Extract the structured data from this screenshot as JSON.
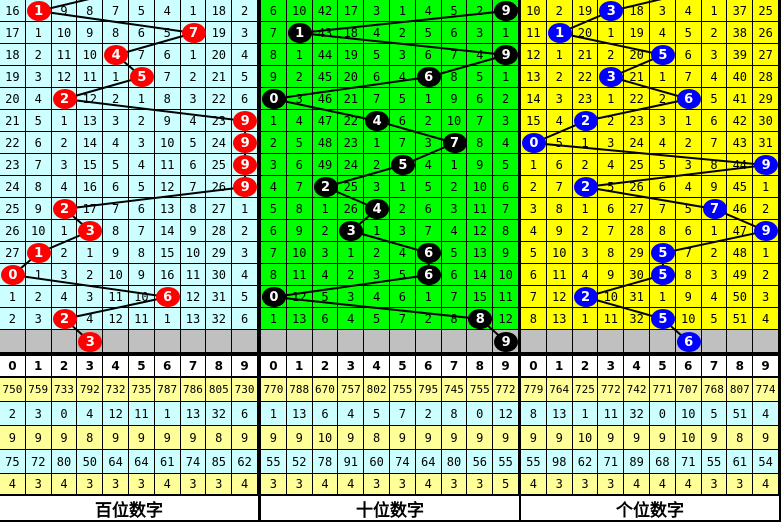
{
  "colors": {
    "yellow_row": "#ffff99",
    "cyan_row": "#ccffff",
    "gray_row": "#c0c0c0"
  },
  "header_digits": [
    "0",
    "1",
    "2",
    "3",
    "4",
    "5",
    "6",
    "7",
    "8",
    "9"
  ],
  "panels": [
    {
      "key": "hundreds",
      "title": "百位数字",
      "bg": "#ccffff",
      "ball_color": "#ff0000",
      "rows": [
        {
          "cells": [
            "16",
            "1",
            "9",
            "8",
            "7",
            "5",
            "4",
            "1",
            "18",
            "2"
          ],
          "hit": 1
        },
        {
          "cells": [
            "17",
            "1",
            "10",
            "9",
            "8",
            "6",
            "5",
            "7",
            "19",
            "3"
          ],
          "hit": 7
        },
        {
          "cells": [
            "18",
            "2",
            "11",
            "10",
            "4",
            "7",
            "6",
            "1",
            "20",
            "4"
          ],
          "hit": 4
        },
        {
          "cells": [
            "19",
            "3",
            "12",
            "11",
            "1",
            "5",
            "7",
            "2",
            "21",
            "5"
          ],
          "hit": 5
        },
        {
          "cells": [
            "20",
            "4",
            "2",
            "12",
            "2",
            "1",
            "8",
            "3",
            "22",
            "6"
          ],
          "hit": 2
        },
        {
          "cells": [
            "21",
            "5",
            "1",
            "13",
            "3",
            "2",
            "9",
            "4",
            "23",
            "9"
          ],
          "hit": 9
        },
        {
          "cells": [
            "22",
            "6",
            "2",
            "14",
            "4",
            "3",
            "10",
            "5",
            "24",
            "9"
          ],
          "hit": 9
        },
        {
          "cells": [
            "23",
            "7",
            "3",
            "15",
            "5",
            "4",
            "11",
            "6",
            "25",
            "9"
          ],
          "hit": 9
        },
        {
          "cells": [
            "24",
            "8",
            "4",
            "16",
            "6",
            "5",
            "12",
            "7",
            "26",
            "9"
          ],
          "hit": 9
        },
        {
          "cells": [
            "25",
            "9",
            "2",
            "17",
            "7",
            "6",
            "13",
            "8",
            "27",
            "1"
          ],
          "hit": 2
        },
        {
          "cells": [
            "26",
            "10",
            "1",
            "3",
            "8",
            "7",
            "14",
            "9",
            "28",
            "2"
          ],
          "hit": 3
        },
        {
          "cells": [
            "27",
            "1",
            "2",
            "1",
            "9",
            "8",
            "15",
            "10",
            "29",
            "3"
          ],
          "hit": 1
        },
        {
          "cells": [
            "0",
            "1",
            "3",
            "2",
            "10",
            "9",
            "16",
            "11",
            "30",
            "4"
          ],
          "hit": 0
        },
        {
          "cells": [
            "1",
            "2",
            "4",
            "3",
            "11",
            "10",
            "6",
            "12",
            "31",
            "5"
          ],
          "hit": 6
        },
        {
          "cells": [
            "2",
            "3",
            "2",
            "4",
            "12",
            "11",
            "1",
            "13",
            "32",
            "6"
          ],
          "hit": 2
        }
      ],
      "pending": {
        "hit": 3,
        "value": "3"
      },
      "stats": [
        [
          "750",
          "759",
          "733",
          "792",
          "732",
          "735",
          "787",
          "786",
          "805",
          "730"
        ],
        [
          "2",
          "3",
          "0",
          "4",
          "12",
          "11",
          "1",
          "13",
          "32",
          "6"
        ],
        [
          "9",
          "9",
          "9",
          "8",
          "9",
          "9",
          "9",
          "9",
          "8",
          "9"
        ],
        [
          "75",
          "72",
          "80",
          "50",
          "64",
          "64",
          "61",
          "74",
          "85",
          "62"
        ],
        [
          "4",
          "3",
          "4",
          "3",
          "3",
          "3",
          "4",
          "3",
          "3",
          "4"
        ]
      ]
    },
    {
      "key": "tens",
      "title": "十位数字",
      "bg": "#00ff00",
      "ball_color": "#000000",
      "rows": [
        {
          "cells": [
            "6",
            "10",
            "42",
            "17",
            "3",
            "1",
            "4",
            "5",
            "2",
            "9"
          ],
          "hit": 9
        },
        {
          "cells": [
            "7",
            "1",
            "43",
            "18",
            "4",
            "2",
            "5",
            "6",
            "3",
            "1"
          ],
          "hit": 1
        },
        {
          "cells": [
            "8",
            "1",
            "44",
            "19",
            "5",
            "3",
            "6",
            "7",
            "4",
            "9"
          ],
          "hit": 9
        },
        {
          "cells": [
            "9",
            "2",
            "45",
            "20",
            "6",
            "4",
            "6",
            "8",
            "5",
            "1"
          ],
          "hit": 6
        },
        {
          "cells": [
            "0",
            "3",
            "46",
            "21",
            "7",
            "5",
            "1",
            "9",
            "6",
            "2"
          ],
          "hit": 0
        },
        {
          "cells": [
            "1",
            "4",
            "47",
            "22",
            "4",
            "6",
            "2",
            "10",
            "7",
            "3"
          ],
          "hit": 4
        },
        {
          "cells": [
            "2",
            "5",
            "48",
            "23",
            "1",
            "7",
            "3",
            "7",
            "8",
            "4"
          ],
          "hit": 7
        },
        {
          "cells": [
            "3",
            "6",
            "49",
            "24",
            "2",
            "5",
            "4",
            "1",
            "9",
            "5"
          ],
          "hit": 5
        },
        {
          "cells": [
            "4",
            "7",
            "2",
            "25",
            "3",
            "1",
            "5",
            "2",
            "10",
            "6"
          ],
          "hit": 2
        },
        {
          "cells": [
            "5",
            "8",
            "1",
            "26",
            "4",
            "2",
            "6",
            "3",
            "11",
            "7"
          ],
          "hit": 4
        },
        {
          "cells": [
            "6",
            "9",
            "2",
            "3",
            "1",
            "3",
            "7",
            "4",
            "12",
            "8"
          ],
          "hit": 3
        },
        {
          "cells": [
            "7",
            "10",
            "3",
            "1",
            "2",
            "4",
            "6",
            "5",
            "13",
            "9"
          ],
          "hit": 6
        },
        {
          "cells": [
            "8",
            "11",
            "4",
            "2",
            "3",
            "5",
            "6",
            "6",
            "14",
            "10"
          ],
          "hit": 6
        },
        {
          "cells": [
            "0",
            "12",
            "5",
            "3",
            "4",
            "6",
            "1",
            "7",
            "15",
            "11"
          ],
          "hit": 0
        },
        {
          "cells": [
            "1",
            "13",
            "6",
            "4",
            "5",
            "7",
            "2",
            "8",
            "8",
            "12"
          ],
          "hit": 8
        }
      ],
      "pending": {
        "hit": 9,
        "value": "9"
      },
      "stats": [
        [
          "770",
          "788",
          "670",
          "757",
          "802",
          "755",
          "795",
          "745",
          "755",
          "772"
        ],
        [
          "1",
          "13",
          "6",
          "4",
          "5",
          "7",
          "2",
          "8",
          "0",
          "12"
        ],
        [
          "9",
          "9",
          "10",
          "9",
          "8",
          "9",
          "9",
          "9",
          "9",
          "9"
        ],
        [
          "55",
          "52",
          "78",
          "91",
          "60",
          "74",
          "64",
          "80",
          "56",
          "55"
        ],
        [
          "3",
          "3",
          "4",
          "4",
          "3",
          "3",
          "4",
          "3",
          "3",
          "5"
        ]
      ]
    },
    {
      "key": "units",
      "title": "个位数字",
      "bg": "#ffff00",
      "ball_color": "#0000ff",
      "rows": [
        {
          "cells": [
            "10",
            "2",
            "19",
            "3",
            "18",
            "3",
            "4",
            "1",
            "37",
            "25"
          ],
          "hit": 3
        },
        {
          "cells": [
            "11",
            "1",
            "20",
            "1",
            "19",
            "4",
            "5",
            "2",
            "38",
            "26"
          ],
          "hit": 1
        },
        {
          "cells": [
            "12",
            "1",
            "21",
            "2",
            "20",
            "5",
            "6",
            "3",
            "39",
            "27"
          ],
          "hit": 5
        },
        {
          "cells": [
            "13",
            "2",
            "22",
            "3",
            "21",
            "1",
            "7",
            "4",
            "40",
            "28"
          ],
          "hit": 3
        },
        {
          "cells": [
            "14",
            "3",
            "23",
            "1",
            "22",
            "2",
            "6",
            "5",
            "41",
            "29"
          ],
          "hit": 6
        },
        {
          "cells": [
            "15",
            "4",
            "2",
            "2",
            "23",
            "3",
            "1",
            "6",
            "42",
            "30"
          ],
          "hit": 2
        },
        {
          "cells": [
            "0",
            "5",
            "1",
            "3",
            "24",
            "4",
            "2",
            "7",
            "43",
            "31"
          ],
          "hit": 0
        },
        {
          "cells": [
            "1",
            "6",
            "2",
            "4",
            "25",
            "5",
            "3",
            "8",
            "44",
            "9"
          ],
          "hit": 9
        },
        {
          "cells": [
            "2",
            "7",
            "2",
            "5",
            "26",
            "6",
            "4",
            "9",
            "45",
            "1"
          ],
          "hit": 2
        },
        {
          "cells": [
            "3",
            "8",
            "1",
            "6",
            "27",
            "7",
            "5",
            "7",
            "46",
            "2"
          ],
          "hit": 7
        },
        {
          "cells": [
            "4",
            "9",
            "2",
            "7",
            "28",
            "8",
            "6",
            "1",
            "47",
            "9"
          ],
          "hit": 9
        },
        {
          "cells": [
            "5",
            "10",
            "3",
            "8",
            "29",
            "5",
            "7",
            "2",
            "48",
            "1"
          ],
          "hit": 5
        },
        {
          "cells": [
            "6",
            "11",
            "4",
            "9",
            "30",
            "5",
            "8",
            "3",
            "49",
            "2"
          ],
          "hit": 5
        },
        {
          "cells": [
            "7",
            "12",
            "2",
            "10",
            "31",
            "1",
            "9",
            "4",
            "50",
            "3"
          ],
          "hit": 2
        },
        {
          "cells": [
            "8",
            "13",
            "1",
            "11",
            "32",
            "5",
            "10",
            "5",
            "51",
            "4"
          ],
          "hit": 5
        }
      ],
      "pending": {
        "hit": 6,
        "value": "6"
      },
      "stats": [
        [
          "779",
          "764",
          "725",
          "772",
          "742",
          "771",
          "707",
          "768",
          "807",
          "774"
        ],
        [
          "8",
          "13",
          "1",
          "11",
          "32",
          "0",
          "10",
          "5",
          "51",
          "4"
        ],
        [
          "9",
          "9",
          "10",
          "9",
          "9",
          "9",
          "10",
          "9",
          "8",
          "9"
        ],
        [
          "55",
          "98",
          "62",
          "71",
          "89",
          "68",
          "71",
          "55",
          "61",
          "54"
        ],
        [
          "4",
          "3",
          "3",
          "3",
          "4",
          "4",
          "4",
          "3",
          "3",
          "4"
        ]
      ]
    }
  ]
}
